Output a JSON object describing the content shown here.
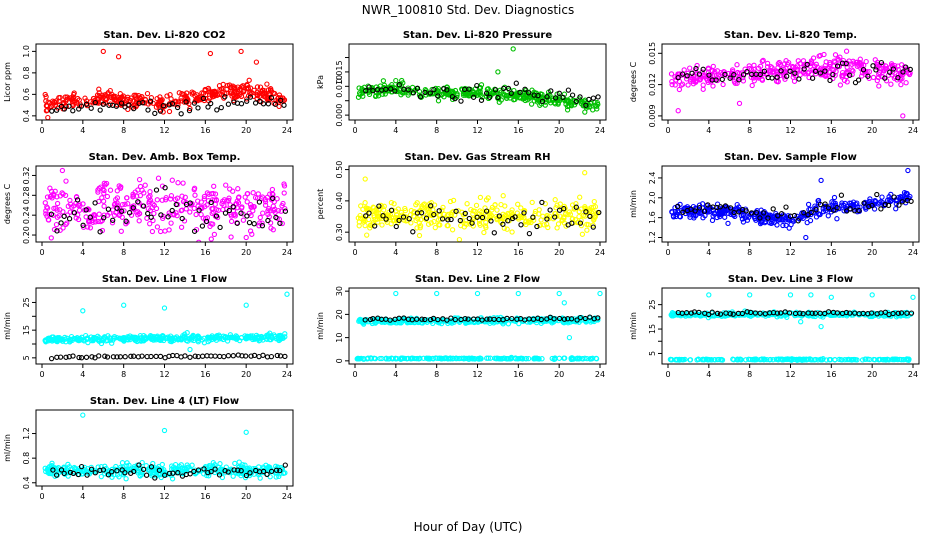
{
  "figure": {
    "title": "NWR_100810  Std. Dev. Diagnostics",
    "xlabel": "Hour of Day (UTC)"
  },
  "chart_data": [
    {
      "type": "scatter",
      "title": "Stan. Dev. Li-820 CO2",
      "ylabel": "Licor ppm",
      "xlim": [
        0,
        24
      ],
      "ylim": [
        0.38,
        1.05
      ],
      "yticks": [
        0.4,
        0.6,
        0.8,
        1.0
      ],
      "ytick_labels": [
        "0.4",
        "0.6",
        "0.8",
        "1.0"
      ],
      "xticks": [
        0,
        4,
        8,
        12,
        16,
        20,
        24
      ],
      "color": "#ff0000",
      "base": 0.52,
      "band": 0.06,
      "drift": [
        [
          0,
          0.5
        ],
        [
          6,
          0.56
        ],
        [
          12,
          0.52
        ],
        [
          16,
          0.6
        ],
        [
          20,
          0.64
        ],
        [
          24,
          0.55
        ]
      ],
      "spread": 0.05,
      "black_base": 0.47,
      "black_spread": 0.04,
      "outliers": [
        [
          6,
          1.0
        ],
        [
          7.5,
          0.95
        ],
        [
          16.5,
          0.98
        ],
        [
          19.5,
          1.0
        ],
        [
          21,
          0.9
        ]
      ]
    },
    {
      "type": "scatter",
      "title": "Stan. Dev. Li-820 Pressure",
      "ylabel": "kPa",
      "xlim": [
        0,
        24
      ],
      "ylim": [
        -0.001,
        0.024
      ],
      "yticks": [
        0.0,
        0.005,
        0.01,
        0.015,
        0.02
      ],
      "ytick_labels": [
        "0.000",
        "",
        "0.010",
        "0.015",
        ""
      ],
      "xticks": [
        0,
        4,
        8,
        12,
        16,
        20,
        24
      ],
      "color": "#00c000",
      "drift": [
        [
          0,
          0.008
        ],
        [
          4,
          0.009
        ],
        [
          8,
          0.007
        ],
        [
          12,
          0.008
        ],
        [
          16,
          0.007
        ],
        [
          20,
          0.005
        ],
        [
          24,
          0.003
        ]
      ],
      "spread": 0.0015,
      "black_base": 0.008,
      "black_spread": 0.002,
      "outliers": [
        [
          14,
          0.015
        ],
        [
          15.5,
          0.023
        ],
        [
          4,
          0.012
        ]
      ]
    },
    {
      "type": "scatter",
      "title": "Stan. Dev. Li-820 Temp.",
      "ylabel": "degrees C",
      "xlim": [
        0,
        24
      ],
      "ylim": [
        0.0088,
        0.0157
      ],
      "yticks": [
        0.009,
        0.012,
        0.015
      ],
      "ytick_labels": [
        "0.009",
        "0.012",
        "0.015"
      ],
      "xticks": [
        0,
        4,
        8,
        12,
        16,
        20,
        24
      ],
      "color": "#ff00ff",
      "drift": [
        [
          0,
          0.0125
        ],
        [
          6,
          0.0128
        ],
        [
          12,
          0.0133
        ],
        [
          16,
          0.0136
        ],
        [
          20,
          0.0134
        ],
        [
          24,
          0.013
        ]
      ],
      "spread": 0.0008,
      "black_base": 0.0132,
      "black_spread": 0.0006,
      "outliers": [
        [
          1,
          0.0095
        ],
        [
          23,
          0.009
        ],
        [
          7,
          0.0102
        ],
        [
          17.5,
          0.0152
        ]
      ]
    },
    {
      "type": "scatter",
      "title": "Stan. Dev. Amb. Box Temp.",
      "ylabel": "degrees C",
      "xlim": [
        0,
        24
      ],
      "ylim": [
        0.19,
        0.335
      ],
      "yticks": [
        0.2,
        0.24,
        0.28,
        0.32
      ],
      "ytick_labels": [
        "0.20",
        "0.24",
        "0.28",
        "0.32"
      ],
      "xticks": [
        0,
        4,
        8,
        12,
        16,
        20,
        24
      ],
      "color": "#ff00ff",
      "drift": [
        [
          0,
          0.25
        ],
        [
          12,
          0.26
        ],
        [
          24,
          0.25
        ]
      ],
      "spread": 0.035,
      "black_base": 0.25,
      "black_spread": 0.025,
      "outliers": [
        [
          20,
          0.195
        ],
        [
          2,
          0.33
        ]
      ]
    },
    {
      "type": "scatter",
      "title": "Stan. Dev. Gas Stream RH",
      "ylabel": "percent",
      "xlim": [
        0,
        24
      ],
      "ylim": [
        0.275,
        0.505
      ],
      "yticks": [
        0.3,
        0.4,
        0.5
      ],
      "ytick_labels": [
        "0.30",
        "0.40",
        "0.50"
      ],
      "xticks": [
        0,
        4,
        8,
        12,
        16,
        20,
        24
      ],
      "color": "#ffff00",
      "drift": [
        [
          0,
          0.35
        ],
        [
          24,
          0.35
        ]
      ],
      "spread": 0.035,
      "black_base": 0.34,
      "black_spread": 0.03,
      "outliers": [
        [
          22.5,
          0.49
        ],
        [
          1,
          0.47
        ]
      ]
    },
    {
      "type": "scatter",
      "title": "Stan. Dev. Sample Flow",
      "ylabel": "ml/min",
      "xlim": [
        0,
        24
      ],
      "ylim": [
        1.15,
        2.6
      ],
      "yticks": [
        1.2,
        1.6,
        2.0,
        2.4
      ],
      "ytick_labels": [
        "1.2",
        "1.6",
        "2.0",
        "2.4"
      ],
      "xticks": [
        0,
        4,
        8,
        12,
        16,
        20,
        24
      ],
      "color": "#0000ff",
      "drift": [
        [
          0,
          1.75
        ],
        [
          6,
          1.72
        ],
        [
          10,
          1.6
        ],
        [
          13,
          1.55
        ],
        [
          15,
          1.8
        ],
        [
          18,
          1.82
        ],
        [
          22,
          1.95
        ],
        [
          24,
          2.05
        ]
      ],
      "spread": 0.1,
      "black_base": 1.7,
      "black_spread": 0.12,
      "outliers": [
        [
          13.5,
          1.2
        ],
        [
          15,
          2.35
        ],
        [
          23.5,
          2.55
        ]
      ]
    },
    {
      "type": "scatter",
      "title": "Stan. Dev. Line 1 Flow",
      "ylabel": "ml/min",
      "xlim": [
        0,
        24
      ],
      "ylim": [
        3.5,
        29.5
      ],
      "yticks": [
        5,
        10,
        15,
        20,
        25
      ],
      "ytick_labels": [
        "5",
        "",
        "15",
        "",
        "25"
      ],
      "xticks": [
        0,
        4,
        8,
        12,
        16,
        20,
        24
      ],
      "color": "#00ffff",
      "drift": [
        [
          0,
          11.5
        ],
        [
          24,
          12.5
        ]
      ],
      "spread": 0.8,
      "black_base": 5.5,
      "black_spread": 0.3,
      "second_cyan": null,
      "outliers": [
        [
          4,
          22
        ],
        [
          8,
          24
        ],
        [
          12,
          23
        ],
        [
          14.5,
          8
        ],
        [
          20,
          24
        ],
        [
          24,
          28
        ]
      ]
    },
    {
      "type": "scatter",
      "title": "Stan. Dev. Line 2 Flow",
      "ylabel": "ml/min",
      "xlim": [
        0,
        24
      ],
      "ylim": [
        -0.5,
        30.5
      ],
      "yticks": [
        0,
        10,
        20,
        30
      ],
      "ytick_labels": [
        "0",
        "10",
        "20",
        "30"
      ],
      "xticks": [
        0,
        4,
        8,
        12,
        16,
        20,
        24
      ],
      "color": "#00ffff",
      "drift": [
        [
          0,
          17
        ],
        [
          24,
          17.5
        ]
      ],
      "spread": 0.8,
      "black_base": 18,
      "black_spread": 0.4,
      "second_cyan": 1,
      "outliers": [
        [
          4,
          29
        ],
        [
          8,
          29
        ],
        [
          12,
          29
        ],
        [
          16,
          29
        ],
        [
          20,
          29
        ],
        [
          24,
          29
        ],
        [
          21,
          10
        ],
        [
          20.5,
          25
        ]
      ]
    },
    {
      "type": "scatter",
      "title": "Stan. Dev. Line 3 Flow",
      "ylabel": "ml/min",
      "xlim": [
        0,
        24
      ],
      "ylim": [
        1.5,
        31
      ],
      "yticks": [
        5,
        10,
        15,
        20,
        25
      ],
      "ytick_labels": [
        "5",
        "",
        "15",
        "",
        "25"
      ],
      "xticks": [
        0,
        4,
        8,
        12,
        16,
        20,
        24
      ],
      "color": "#00ffff",
      "drift": [
        [
          0,
          21
        ],
        [
          24,
          21
        ]
      ],
      "spread": 0.6,
      "black_base": 21.5,
      "black_spread": 0.4,
      "second_cyan": 2.5,
      "outliers": [
        [
          4,
          29
        ],
        [
          8,
          29
        ],
        [
          12,
          29
        ],
        [
          13,
          18
        ],
        [
          14,
          29
        ],
        [
          15,
          16
        ],
        [
          16,
          28
        ],
        [
          20,
          29
        ],
        [
          24,
          28
        ]
      ]
    },
    {
      "type": "scatter",
      "title": "Stan. Dev. Line 4 (LT) Flow",
      "ylabel": "ml/min",
      "xlim": [
        0,
        24
      ],
      "ylim": [
        0.38,
        1.55
      ],
      "yticks": [
        0.4,
        0.8,
        1.2
      ],
      "ytick_labels": [
        "0.4",
        "0.8",
        "1.2"
      ],
      "xticks": [
        0,
        4,
        8,
        12,
        16,
        20,
        24
      ],
      "color": "#00ffff",
      "drift": [
        [
          0,
          0.6
        ],
        [
          24,
          0.6
        ]
      ],
      "spread": 0.07,
      "black_base": 0.58,
      "black_spread": 0.06,
      "outliers": [
        [
          4,
          1.5
        ],
        [
          12,
          1.25
        ],
        [
          20,
          1.22
        ]
      ]
    }
  ]
}
